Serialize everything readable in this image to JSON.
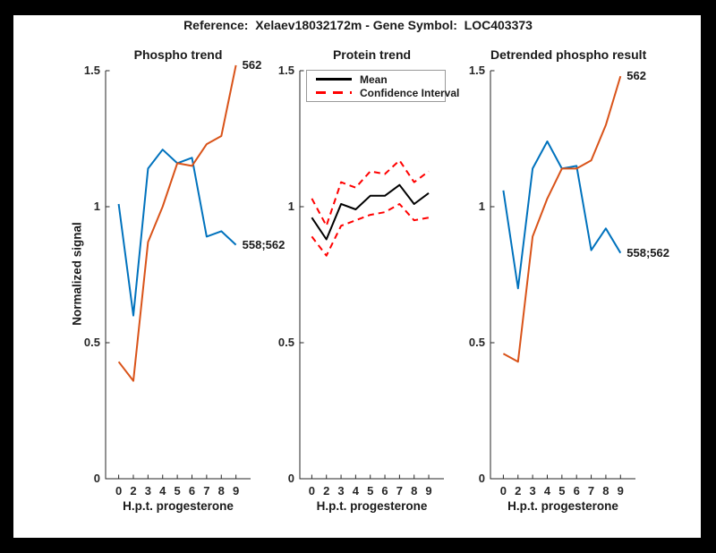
{
  "figure": {
    "title": "Reference:  Xelaev18032172m - Gene Symbol:  LOC403373",
    "background_color": "#000000",
    "canvas_color": "#ffffff",
    "axis_color": "#262626"
  },
  "colors": {
    "blue": "#0072BD",
    "orange": "#D95319",
    "red": "#FF0000",
    "black": "#000000"
  },
  "chart_data": [
    {
      "type": "line",
      "title": "Phospho trend",
      "xlabel": "H.p.t. progesterone",
      "ylabel": "Normalized signal",
      "x_tick_labels": [
        "0",
        "2",
        "3",
        "4",
        "5",
        "6",
        "7",
        "8",
        "9"
      ],
      "y_ticks": [
        0,
        0.5,
        1,
        1.5
      ],
      "y_tick_labels": [
        "0",
        "0.5",
        "1",
        "1.5"
      ],
      "ylim": [
        0,
        1.5
      ],
      "grid": false,
      "series": [
        {
          "name": "phospho-558-562",
          "color": "#0072BD",
          "style": "solid",
          "values": [
            1.01,
            0.6,
            1.14,
            1.21,
            1.16,
            1.18,
            0.89,
            0.91,
            0.86
          ],
          "end_label": "558;562"
        },
        {
          "name": "phospho-562",
          "color": "#D95319",
          "style": "solid",
          "values": [
            0.43,
            0.36,
            0.87,
            1.0,
            1.16,
            1.15,
            1.23,
            1.26,
            1.52
          ],
          "end_label": "562"
        }
      ]
    },
    {
      "type": "line",
      "title": "Protein trend",
      "xlabel": "H.p.t. progesterone",
      "ylabel": "",
      "x_tick_labels": [
        "0",
        "2",
        "3",
        "4",
        "5",
        "6",
        "7",
        "8",
        "9"
      ],
      "y_ticks": [
        0,
        0.5,
        1,
        1.5
      ],
      "y_tick_labels": [
        "0",
        "0.5",
        "1",
        "1.5"
      ],
      "ylim": [
        0,
        1.5
      ],
      "grid": false,
      "legend": {
        "position": "northwest-inside",
        "entries": [
          {
            "label": "Mean",
            "color": "#000000",
            "style": "solid"
          },
          {
            "label": "Confidence Interval",
            "color": "#FF0000",
            "style": "dashed"
          }
        ]
      },
      "series": [
        {
          "name": "protein-mean",
          "color": "#000000",
          "style": "solid",
          "values": [
            0.96,
            0.88,
            1.01,
            0.99,
            1.04,
            1.04,
            1.08,
            1.01,
            1.05
          ]
        },
        {
          "name": "protein-ci-upper",
          "color": "#FF0000",
          "style": "dashed",
          "values": [
            1.03,
            0.93,
            1.09,
            1.07,
            1.13,
            1.12,
            1.17,
            1.09,
            1.13
          ]
        },
        {
          "name": "protein-ci-lower",
          "color": "#FF0000",
          "style": "dashed",
          "values": [
            0.89,
            0.82,
            0.93,
            0.95,
            0.97,
            0.98,
            1.01,
            0.95,
            0.96
          ]
        }
      ]
    },
    {
      "type": "line",
      "title": "Detrended phospho result",
      "xlabel": "H.p.t. progesterone",
      "ylabel": "",
      "x_tick_labels": [
        "0",
        "2",
        "3",
        "4",
        "5",
        "6",
        "7",
        "8",
        "9"
      ],
      "y_ticks": [
        0,
        0.5,
        1,
        1.5
      ],
      "y_tick_labels": [
        "0",
        "0.5",
        "1",
        "1.5"
      ],
      "ylim": [
        0,
        1.5
      ],
      "grid": false,
      "series": [
        {
          "name": "detrended-558-562",
          "color": "#0072BD",
          "style": "solid",
          "values": [
            1.06,
            0.7,
            1.14,
            1.24,
            1.14,
            1.15,
            0.84,
            0.92,
            0.83
          ],
          "end_label": "558;562"
        },
        {
          "name": "detrended-562",
          "color": "#D95319",
          "style": "solid",
          "values": [
            0.46,
            0.43,
            0.89,
            1.03,
            1.14,
            1.14,
            1.17,
            1.3,
            1.48
          ],
          "end_label": "562"
        }
      ]
    }
  ]
}
